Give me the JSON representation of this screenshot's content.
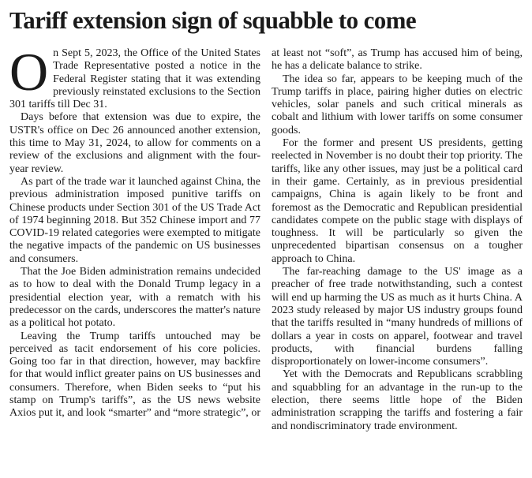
{
  "article": {
    "title": "Tariff extension sign of squabble to come",
    "paragraphs": [
      "On Sept 5, 2023, the Office of the United States Trade Representative posted a notice in the Federal Register stating that it was extending previously reinstated exclusions to the Section 301 tariffs till Dec 31.",
      "Days before that extension was due to expire, the USTR's office on Dec 26 announced another extension, this time to May 31, 2024, to allow for comments on a review of the exclusions and alignment with the four-year review.",
      "As part of the trade war it launched against China, the previous administration imposed punitive tariffs on Chinese products under Section 301 of the US Trade Act of 1974 beginning 2018. But 352 Chinese import and 77 COVID-19 related categories were exempted to mitigate the negative impacts of the pandemic on US businesses and consumers.",
      "That the Joe Biden administration remains undecided as to how to deal with the Donald Trump legacy in a presidential election year, with a rematch with his predecessor on the cards, underscores the matter's nature as a political hot potato.",
      "Leaving the Trump tariffs untouched may be perceived as tacit endorsement of his core policies. Going too far in that direction, however, may backfire for that would inflict greater pains on US businesses and consumers. Therefore, when Biden seeks to “put his stamp on Trump's tariffs”, as the US news website Axios put it, and look “smarter” and “more strategic”, or at least not “soft”, as Trump has accused him of being, he has a delicate balance to strike.",
      "The idea so far, appears to be keeping much of the Trump tariffs in place, pairing higher duties on electric vehicles, solar panels and such critical minerals as cobalt and lithium with lower tariffs on some consumer goods.",
      "For the former and present US presidents, getting reelected in November is no doubt their top priority. The tariffs, like any other issues, may just be a political card in their game. Certainly, as in previous presidential campaigns, China is again likely to be front and foremost as the Democratic and Republican presidential candidates compete on the public stage with displays of toughness. It will be particularly so given the unprecedented bipartisan consensus on a tougher approach to China.",
      "The far-reaching damage to the US' image as a preacher of free trade notwithstanding, such a contest will end up harming the US as much as it hurts China. A 2023 study released by major US industry groups found that the tariffs resulted in “many hundreds of millions of dollars a year in costs on apparel, footwear and travel products, with financial burdens falling disproportionately on lower-income consumers”.",
      "Yet with the Democrats and Republicans scrabbling and squabbling for an advantage in the run-up to the election, there seems little hope of the Biden administration scrapping the tariffs and fostering a fair and nondiscriminatory trade environment."
    ]
  }
}
